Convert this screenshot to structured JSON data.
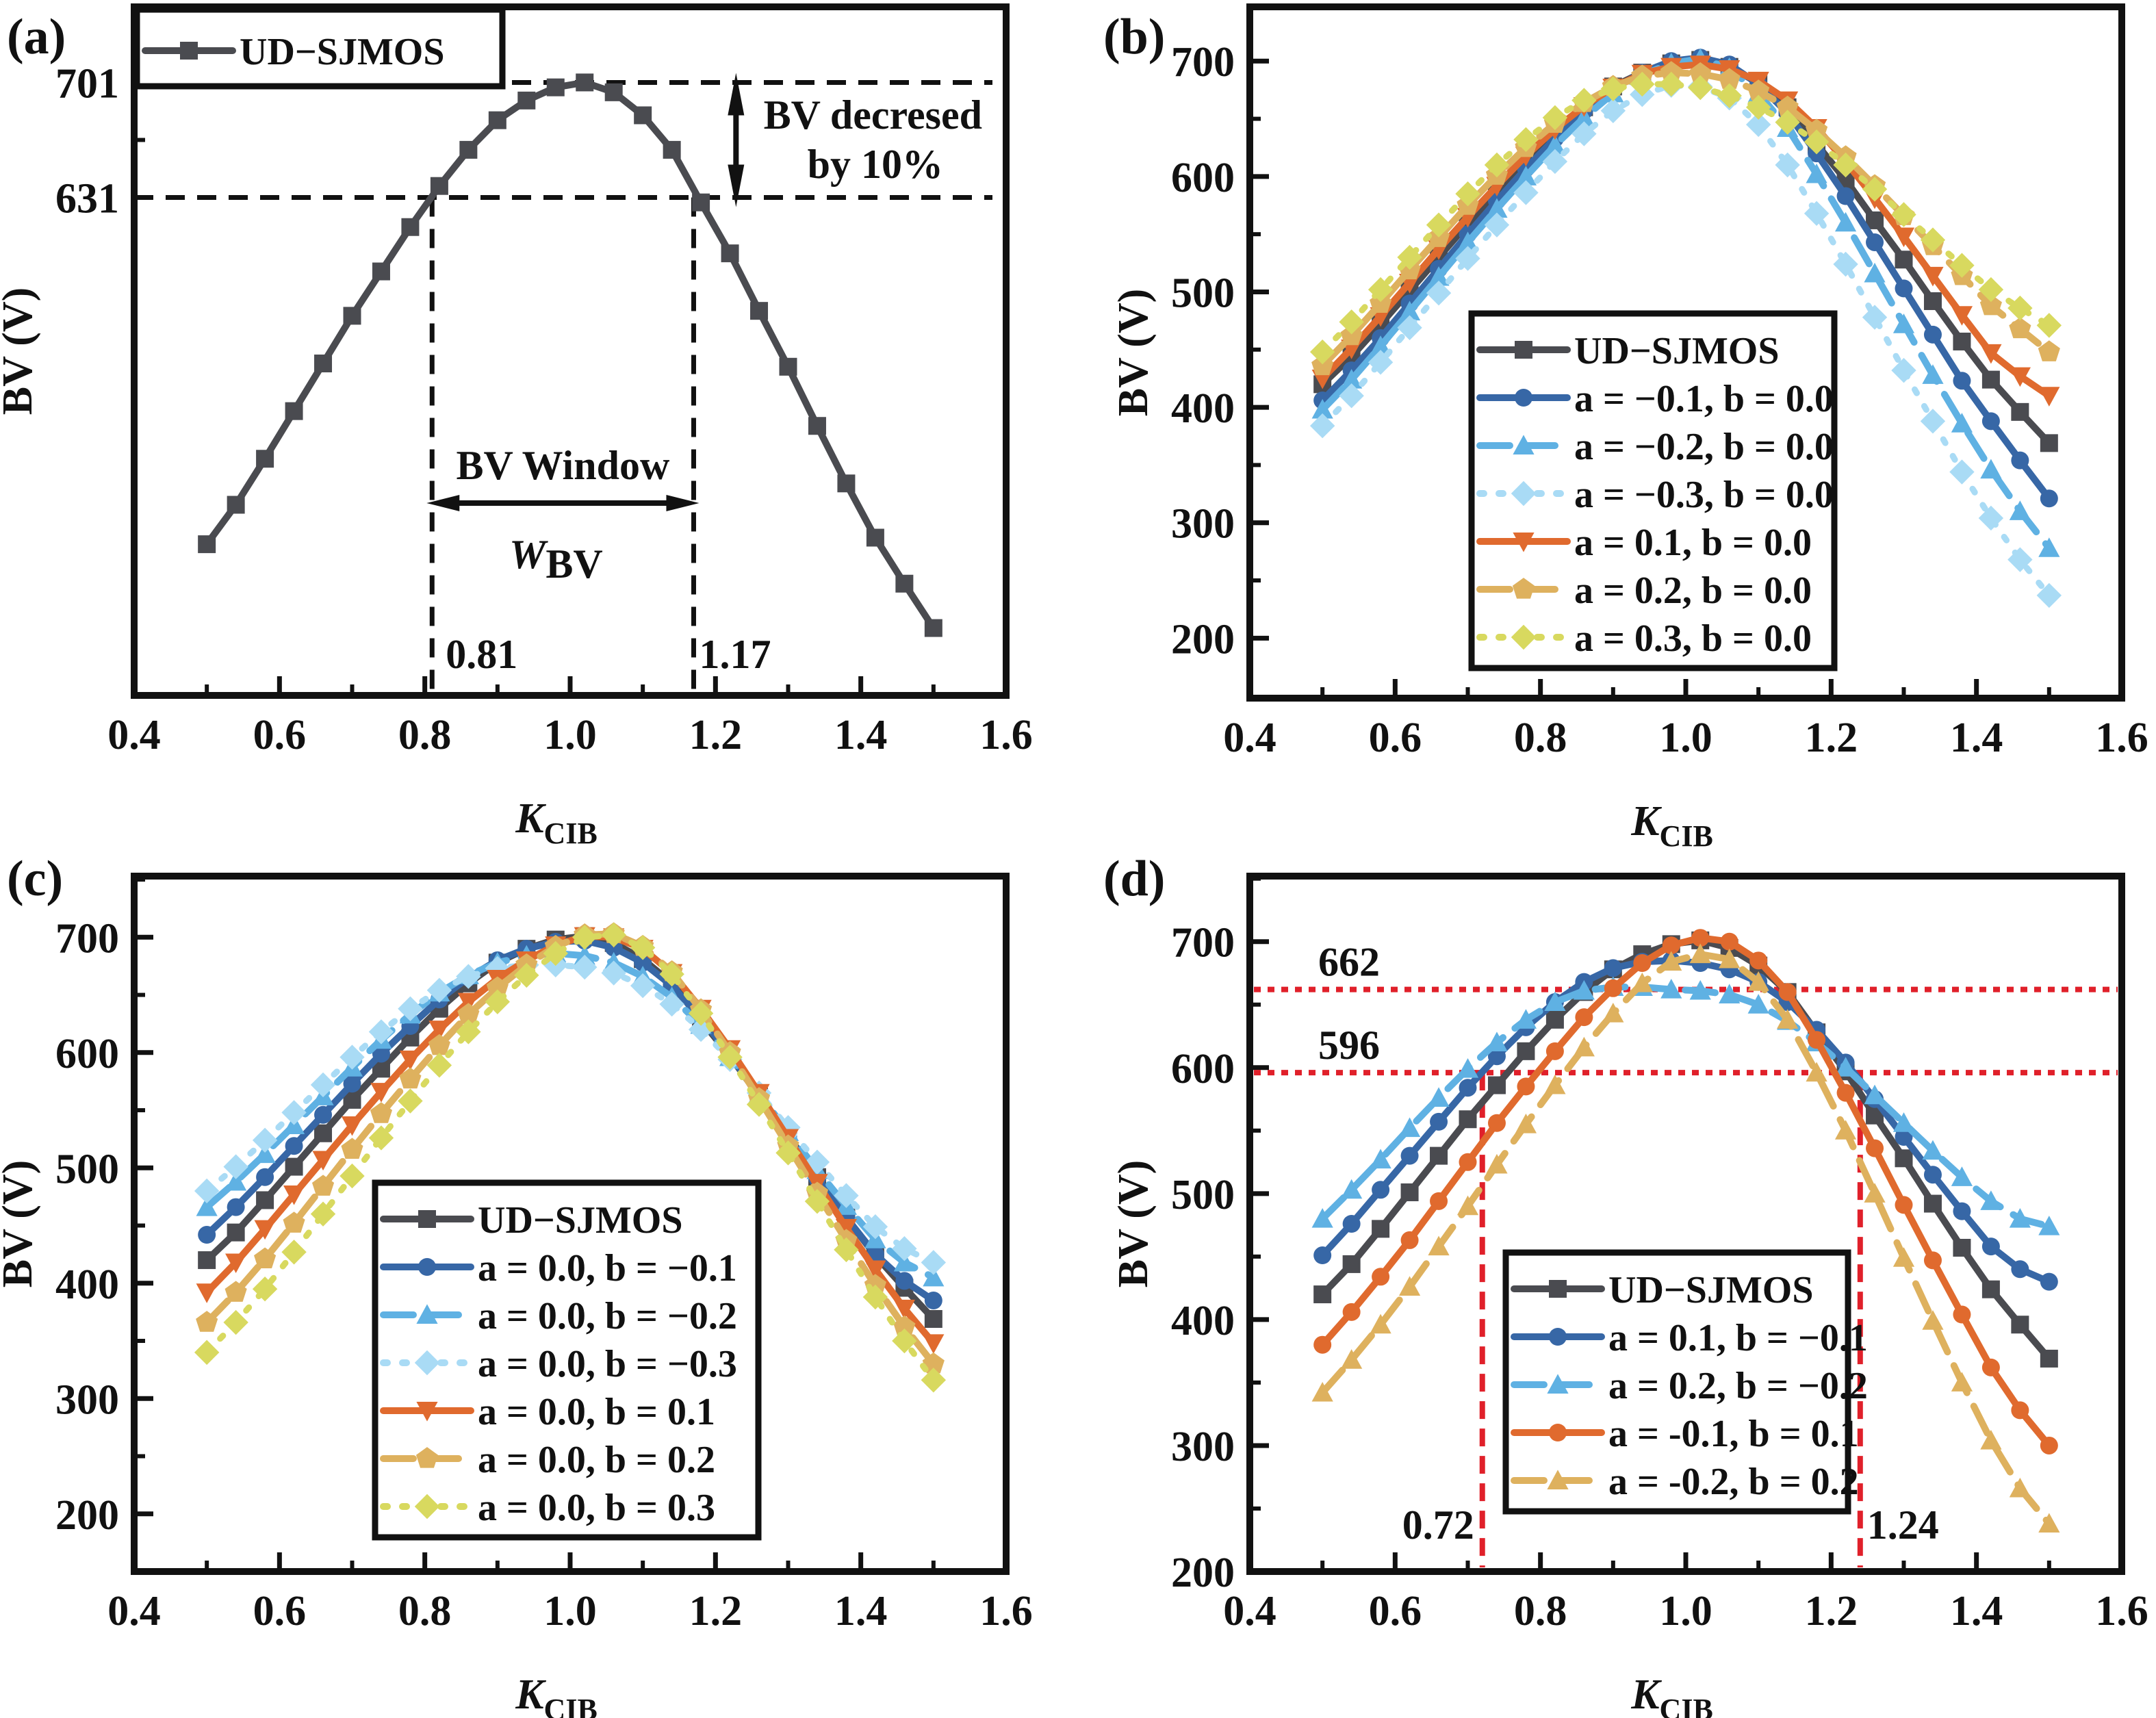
{
  "figure": {
    "colors": {
      "ud": "#4a4b50",
      "blue": "#3767a6",
      "lightblue": "#5fb1e3",
      "paleblue": "#a9dbf5",
      "orange": "#e06a2e",
      "tan": "#deb15e",
      "yellow": "#d8d95f",
      "redline": "#e0202a",
      "black": "#111111"
    }
  },
  "chart_data": [
    {
      "panel": "(a)",
      "type": "line",
      "xlabel": "K",
      "xlabel_sub": "CIB",
      "ylabel": "BV (V)",
      "xlim": [
        0.4,
        1.6
      ],
      "ylim": [
        328,
        747
      ],
      "xticks": [
        "0.4",
        "0.6",
        "0.8",
        "1.0",
        "1.2",
        "1.4",
        "1.6"
      ],
      "yticks": [
        "701",
        "631"
      ],
      "ytick_values": [
        701,
        631
      ],
      "grid": false,
      "legend_position": "top-left",
      "x": [
        0.5,
        0.54,
        0.58,
        0.62,
        0.66,
        0.7,
        0.74,
        0.78,
        0.82,
        0.86,
        0.9,
        0.94,
        0.98,
        1.02,
        1.06,
        1.1,
        1.14,
        1.18,
        1.22,
        1.26,
        1.3,
        1.34,
        1.38,
        1.42,
        1.46,
        1.5
      ],
      "series": [
        {
          "name": "UD−SJMOS",
          "color": "ud",
          "dash": "solid",
          "marker": "square",
          "values": [
            420,
            444,
            472,
            501,
            530,
            559,
            586,
            613,
            638,
            660,
            678,
            690,
            698,
            701,
            695,
            681,
            660,
            628,
            597,
            562,
            528,
            492,
            457,
            424,
            396,
            369
          ]
        }
      ],
      "annotations": {
        "hline_top_value": 701,
        "hline_bottom_value": 631,
        "vline_left_value": 0.81,
        "vline_right_value": 1.17,
        "vline_left_label": "0.81",
        "vline_right_label": "1.17",
        "decrease_label_line1": "BV decresed",
        "decrease_label_line2": "by 10%",
        "window_label": "BV Window",
        "window_symbol": "W",
        "window_symbol_sub": "BV"
      }
    },
    {
      "panel": "(b)",
      "type": "line",
      "xlabel": "K",
      "xlabel_sub": "CIB",
      "ylabel": "BV (V)",
      "xlim": [
        0.4,
        1.6
      ],
      "ylim": [
        148,
        747
      ],
      "xticks": [
        "0.4",
        "0.6",
        "0.8",
        "1.0",
        "1.2",
        "1.4",
        "1.6"
      ],
      "yticks": [
        "200",
        "300",
        "400",
        "500",
        "600",
        "700"
      ],
      "grid": false,
      "legend_position": "lower-center",
      "x": [
        0.5,
        0.54,
        0.58,
        0.62,
        0.66,
        0.7,
        0.74,
        0.78,
        0.82,
        0.86,
        0.9,
        0.94,
        0.98,
        1.02,
        1.06,
        1.1,
        1.14,
        1.18,
        1.22,
        1.26,
        1.3,
        1.34,
        1.38,
        1.42,
        1.46,
        1.5
      ],
      "series": [
        {
          "name": "UD−SJMOS",
          "color": "ud",
          "dash": "solid",
          "marker": "square",
          "values": [
            420,
            444,
            472,
            501,
            530,
            559,
            586,
            613,
            638,
            660,
            678,
            690,
            698,
            701,
            695,
            681,
            660,
            628,
            597,
            562,
            528,
            492,
            457,
            424,
            396,
            369
          ]
        },
        {
          "name": "a = −0.1, b = 0.0",
          "color": "blue",
          "dash": "solid",
          "marker": "circle",
          "values": [
            406,
            432,
            460,
            490,
            520,
            550,
            579,
            607,
            633,
            657,
            676,
            690,
            700,
            703,
            697,
            680,
            655,
            620,
            583,
            543,
            503,
            463,
            423,
            388,
            354,
            321
          ]
        },
        {
          "name": "a = −0.2, b = 0.0",
          "color": "lightblue",
          "dash": "dash",
          "marker": "triangle-up",
          "values": [
            398,
            424,
            453,
            483,
            513,
            543,
            572,
            600,
            627,
            651,
            672,
            688,
            698,
            702,
            694,
            672,
            642,
            602,
            560,
            516,
            472,
            428,
            386,
            346,
            310,
            278
          ]
        },
        {
          "name": "a = −0.3, b = 0.0",
          "color": "paleblue",
          "dash": "dot",
          "marker": "diamond",
          "values": [
            384,
            410,
            439,
            469,
            499,
            529,
            558,
            586,
            613,
            637,
            657,
            671,
            679,
            678,
            668,
            645,
            610,
            568,
            524,
            478,
            432,
            388,
            344,
            304,
            268,
            237
          ]
        },
        {
          "name": "a = 0.1, b = 0.0",
          "color": "orange",
          "dash": "solid",
          "marker": "triangle-down",
          "values": [
            425,
            451,
            479,
            508,
            537,
            565,
            592,
            618,
            641,
            661,
            677,
            689,
            695,
            697,
            693,
            683,
            666,
            642,
            613,
            581,
            548,
            514,
            480,
            447,
            427,
            410
          ]
        },
        {
          "name": "a = 0.2, b = 0.0",
          "color": "tan",
          "dash": "dash",
          "marker": "pentagon",
          "values": [
            436,
            462,
            490,
            519,
            547,
            575,
            601,
            625,
            646,
            664,
            678,
            687,
            690,
            689,
            684,
            674,
            660,
            640,
            617,
            592,
            566,
            540,
            514,
            488,
            468,
            448
          ]
        },
        {
          "name": "a = 0.3, b = 0.0",
          "color": "yellow",
          "dash": "dot",
          "marker": "diamond",
          "values": [
            448,
            474,
            502,
            530,
            558,
            585,
            610,
            632,
            651,
            666,
            676,
            680,
            680,
            677,
            670,
            660,
            647,
            630,
            610,
            589,
            567,
            545,
            523,
            502,
            486,
            471
          ]
        }
      ]
    },
    {
      "panel": "(c)",
      "type": "line",
      "xlabel": "K",
      "xlabel_sub": "CIB",
      "ylabel": "BV (V)",
      "xlim": [
        0.4,
        1.6
      ],
      "ylim": [
        150,
        753
      ],
      "xticks": [
        "0.4",
        "0.6",
        "0.8",
        "1.0",
        "1.2",
        "1.4",
        "1.6"
      ],
      "yticks": [
        "200",
        "300",
        "400",
        "500",
        "600",
        "700"
      ],
      "grid": false,
      "legend_position": "lower-center",
      "x": [
        0.5,
        0.54,
        0.58,
        0.62,
        0.66,
        0.7,
        0.74,
        0.78,
        0.82,
        0.86,
        0.9,
        0.94,
        0.98,
        1.02,
        1.06,
        1.1,
        1.14,
        1.18,
        1.22,
        1.26,
        1.3,
        1.34,
        1.38,
        1.42,
        1.46,
        1.5
      ],
      "series": [
        {
          "name": "UD−SJMOS",
          "color": "ud",
          "dash": "solid",
          "marker": "square",
          "values": [
            420,
            444,
            472,
            501,
            530,
            559,
            586,
            613,
            638,
            660,
            678,
            690,
            698,
            701,
            695,
            681,
            660,
            628,
            597,
            562,
            528,
            492,
            457,
            424,
            396,
            369
          ]
        },
        {
          "name": "a = 0.0, b = −0.1",
          "color": "blue",
          "dash": "solid",
          "marker": "circle",
          "values": [
            442,
            466,
            492,
            519,
            546,
            573,
            599,
            623,
            646,
            665,
            680,
            690,
            696,
            697,
            691,
            678,
            658,
            630,
            598,
            563,
            527,
            491,
            457,
            425,
            402,
            385
          ]
        },
        {
          "name": "a = 0.0, b = −0.2",
          "color": "lightblue",
          "dash": "dash",
          "marker": "triangle-up",
          "values": [
            466,
            488,
            512,
            537,
            562,
            587,
            611,
            633,
            652,
            667,
            678,
            684,
            686,
            684,
            678,
            666,
            648,
            624,
            596,
            564,
            531,
            498,
            467,
            438,
            418,
            405
          ]
        },
        {
          "name": "a = 0.0, b = −0.3",
          "color": "paleblue",
          "dash": "dot",
          "marker": "diamond",
          "values": [
            480,
            501,
            524,
            548,
            572,
            596,
            618,
            638,
            654,
            666,
            673,
            676,
            676,
            674,
            669,
            658,
            642,
            620,
            594,
            565,
            535,
            505,
            476,
            449,
            430,
            418
          ]
        },
        {
          "name": "a = 0.0, b = 0.1",
          "color": "orange",
          "dash": "solid",
          "marker": "triangle-down",
          "values": [
            392,
            418,
            447,
            477,
            507,
            537,
            566,
            594,
            620,
            644,
            664,
            680,
            693,
            701,
            700,
            690,
            669,
            638,
            603,
            565,
            526,
            487,
            448,
            412,
            378,
            348
          ]
        },
        {
          "name": "a = 0.0, b = 0.2",
          "color": "tan",
          "dash": "dash",
          "marker": "pentagon",
          "values": [
            366,
            392,
            421,
            452,
            484,
            516,
            547,
            577,
            606,
            633,
            656,
            676,
            692,
            702,
            703,
            692,
            670,
            637,
            600,
            560,
            519,
            478,
            437,
            398,
            362,
            330
          ]
        },
        {
          "name": "a = 0.0, b = 0.3",
          "color": "yellow",
          "dash": "dot",
          "marker": "diamond",
          "values": [
            340,
            366,
            395,
            427,
            460,
            493,
            526,
            558,
            589,
            618,
            644,
            667,
            686,
            700,
            702,
            691,
            668,
            634,
            596,
            555,
            513,
            471,
            429,
            388,
            350,
            316
          ]
        }
      ]
    },
    {
      "panel": "(d)",
      "type": "line",
      "xlabel": "K",
      "xlabel_sub": "CIB",
      "ylabel": "BV (V)",
      "xlim": [
        0.4,
        1.6
      ],
      "ylim": [
        200,
        752
      ],
      "xticks": [
        "0.4",
        "0.6",
        "0.8",
        "1.0",
        "1.2",
        "1.4",
        "1.6"
      ],
      "yticks": [
        "200",
        "300",
        "400",
        "500",
        "600",
        "700"
      ],
      "grid": false,
      "legend_position": "lower-center",
      "x": [
        0.5,
        0.54,
        0.58,
        0.62,
        0.66,
        0.7,
        0.74,
        0.78,
        0.82,
        0.86,
        0.9,
        0.94,
        0.98,
        1.02,
        1.06,
        1.1,
        1.14,
        1.18,
        1.22,
        1.26,
        1.3,
        1.34,
        1.38,
        1.42,
        1.46,
        1.5
      ],
      "series": [
        {
          "name": "UD−SJMOS",
          "color": "ud",
          "dash": "solid",
          "marker": "square",
          "values": [
            420,
            444,
            472,
            501,
            530,
            559,
            586,
            613,
            638,
            660,
            678,
            690,
            698,
            701,
            695,
            681,
            660,
            628,
            597,
            562,
            528,
            492,
            457,
            424,
            396,
            369
          ]
        },
        {
          "name": "a = 0.1, b = −0.1",
          "color": "blue",
          "dash": "solid",
          "marker": "circle",
          "values": [
            451,
            476,
            503,
            530,
            557,
            584,
            609,
            632,
            652,
            668,
            679,
            684,
            685,
            683,
            678,
            668,
            652,
            630,
            604,
            575,
            545,
            515,
            486,
            458,
            440,
            430
          ]
        },
        {
          "name": "a = 0.2, b = −0.2",
          "color": "lightblue",
          "dash": "dash",
          "marker": "triangle-up",
          "values": [
            480,
            503,
            527,
            552,
            576,
            599,
            620,
            638,
            652,
            661,
            664,
            664,
            662,
            661,
            658,
            650,
            637,
            620,
            600,
            578,
            556,
            534,
            513,
            494,
            480,
            474
          ]
        },
        {
          "name": "a = -0.1, b = 0.1",
          "color": "orange",
          "dash": "solid",
          "marker": "circle",
          "values": [
            380,
            406,
            434,
            463,
            494,
            525,
            556,
            585,
            613,
            640,
            663,
            683,
            697,
            703,
            700,
            685,
            660,
            622,
            580,
            536,
            491,
            447,
            404,
            362,
            328,
            300
          ]
        },
        {
          "name": "a = -0.2, b = 0.2",
          "color": "tan",
          "dash": "dash",
          "marker": "triangle-up",
          "values": [
            342,
            368,
            396,
            426,
            458,
            490,
            523,
            555,
            586,
            616,
            643,
            667,
            684,
            690,
            686,
            668,
            638,
            596,
            550,
            500,
            449,
            399,
            350,
            304,
            266,
            238
          ]
        }
      ],
      "annotations": {
        "hline_top_value": 662,
        "hline_bottom_value": 596,
        "hline_top_label": "662",
        "hline_bottom_label": "596",
        "vline_left_value": 0.72,
        "vline_right_value": 1.24,
        "vline_left_label": "0.72",
        "vline_right_label": "1.24"
      }
    }
  ]
}
